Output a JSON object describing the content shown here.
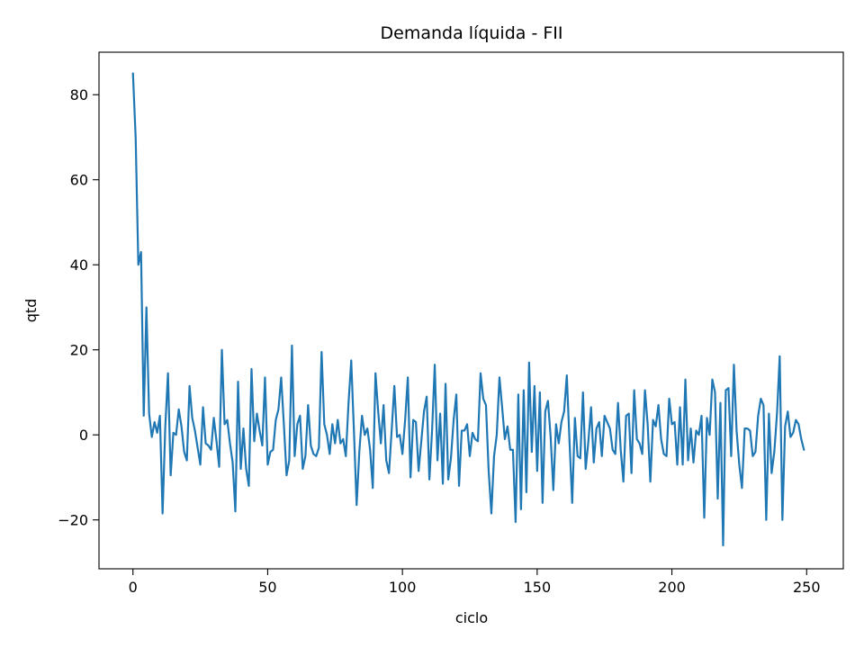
{
  "chart_data": {
    "type": "line",
    "title": "Demanda líquida - FII",
    "xlabel": "ciclo",
    "ylabel": "qtd",
    "xlim": [
      -12.6,
      263.6
    ],
    "ylim": [
      -31.5,
      90
    ],
    "grid": false,
    "x_ticks": [
      0,
      50,
      100,
      150,
      200,
      250
    ],
    "x_tick_labels": [
      "0",
      "50",
      "100",
      "150",
      "200",
      "250"
    ],
    "y_ticks": [
      -20,
      0,
      20,
      40,
      60,
      80
    ],
    "y_tick_labels": [
      "−20",
      "0",
      "20",
      "40",
      "60",
      "80"
    ],
    "series": [
      {
        "color": "#1f77b4",
        "x_start": 0,
        "x_step": 1,
        "values": [
          85,
          70,
          40,
          43,
          4.5,
          30,
          5,
          -0.5,
          3,
          0.5,
          4.5,
          -18.5,
          2,
          14.5,
          -9.5,
          0.5,
          0,
          6,
          2,
          -4,
          -6,
          11.5,
          4,
          1,
          -3,
          -7,
          6.5,
          -2,
          -2.5,
          -3.5,
          4,
          -1.5,
          -7.5,
          20,
          2.5,
          3.5,
          -2,
          -6.5,
          -18,
          12.5,
          -8,
          1.5,
          -8,
          -12,
          15.5,
          -1.5,
          5,
          1,
          -2.5,
          13.5,
          -7,
          -4,
          -3.5,
          3.5,
          6,
          13.5,
          2.5,
          -9.5,
          -6,
          21,
          -5,
          2.5,
          4.5,
          -8,
          -5,
          7,
          -2.5,
          -4.5,
          -5,
          -3,
          19.5,
          2.5,
          0,
          -4.5,
          2.5,
          -2,
          3.5,
          -2,
          -1,
          -5,
          7.5,
          17.5,
          1,
          -16.5,
          -4,
          4.5,
          0,
          1.5,
          -3.5,
          -12.5,
          14.5,
          5.5,
          -2,
          7,
          -6,
          -9,
          1,
          11.5,
          -0.5,
          0,
          -4.5,
          3.5,
          13.5,
          -10,
          3.5,
          3,
          -8.5,
          -1.5,
          5.5,
          9,
          -10.5,
          1,
          16.5,
          -6,
          5,
          -11.5,
          12,
          -10.5,
          -5.5,
          3.5,
          9.5,
          -12,
          1,
          1,
          2.5,
          -5,
          0.5,
          -1,
          -1.5,
          14.5,
          8.5,
          7,
          -8.5,
          -18.5,
          -5,
          0,
          13.5,
          6.5,
          -1,
          2,
          -3.5,
          -3.5,
          -20.5,
          9.5,
          -17.5,
          10.5,
          -13.5,
          17,
          -4,
          11.5,
          -8.5,
          10,
          -16,
          5.5,
          8,
          -0.5,
          -13,
          2.5,
          -2,
          3,
          5.5,
          14,
          -1.5,
          -16,
          4,
          -5,
          -5.5,
          10,
          -8,
          -1.5,
          6.5,
          -6.5,
          1.5,
          3,
          -5,
          4.5,
          3,
          1.5,
          -3.5,
          -4.5,
          7.5,
          -3.5,
          -11,
          4.5,
          5,
          -9,
          10.5,
          -1,
          -2,
          -4.5,
          10.5,
          2.5,
          -11,
          3.5,
          2,
          7,
          -1,
          -4.5,
          -5,
          8.5,
          2.5,
          3,
          -7,
          6.5,
          -7,
          13,
          -6,
          1.5,
          -6.5,
          1,
          0,
          4.5,
          -19.5,
          4,
          0,
          13,
          10,
          -15,
          7.5,
          -26,
          10.5,
          11,
          -5,
          16.5,
          1,
          -7,
          -12.5,
          1.5,
          1.5,
          1,
          -5,
          -4,
          4.5,
          8.5,
          7,
          -20,
          5,
          -9,
          -4,
          5,
          18.5,
          -20,
          2,
          5.5,
          -0.5,
          0.5,
          3.5,
          2.5,
          -1,
          -3.5
        ]
      }
    ]
  }
}
